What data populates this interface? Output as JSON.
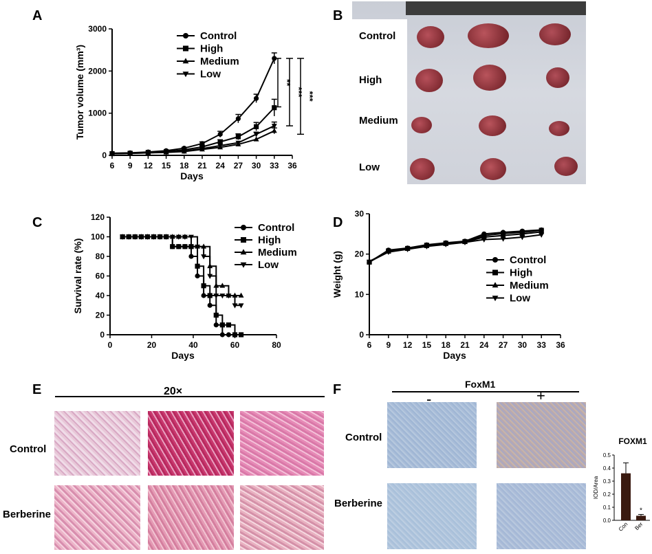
{
  "panel_letters": {
    "A": "A",
    "B": "B",
    "C": "C",
    "D": "D",
    "E": "E",
    "F": "F"
  },
  "colors": {
    "line": "#000000",
    "background": "#ffffff",
    "bar": "#3a1a10"
  },
  "chart_data": [
    {
      "panel": "A",
      "type": "line",
      "xlabel": "Days",
      "ylabel": "Tumor volume (mm³)",
      "xlim": [
        6,
        36
      ],
      "ylim": [
        0,
        3000
      ],
      "xticks": [
        6,
        9,
        12,
        15,
        18,
        21,
        24,
        27,
        30,
        33,
        36
      ],
      "yticks": [
        0,
        1000,
        2000,
        3000
      ],
      "x": [
        6,
        9,
        12,
        15,
        18,
        21,
        24,
        27,
        30,
        33
      ],
      "series": [
        {
          "name": "Control",
          "marker": "circle",
          "values": [
            50,
            60,
            80,
            110,
            170,
            280,
            500,
            870,
            1350,
            2300
          ],
          "err": [
            0,
            0,
            0,
            0,
            20,
            40,
            70,
            100,
            100,
            130
          ]
        },
        {
          "name": "High",
          "marker": "square",
          "values": [
            40,
            50,
            70,
            90,
            130,
            200,
            320,
            440,
            680,
            1130
          ],
          "err": [
            0,
            0,
            0,
            0,
            0,
            30,
            50,
            70,
            100,
            200
          ]
        },
        {
          "name": "Medium",
          "marker": "triangle-up",
          "values": [
            40,
            45,
            60,
            70,
            90,
            140,
            190,
            260,
            380,
            580
          ],
          "err": [
            0,
            0,
            0,
            0,
            0,
            0,
            0,
            0,
            0,
            70
          ]
        },
        {
          "name": "Low",
          "marker": "triangle-down",
          "values": [
            40,
            50,
            60,
            75,
            100,
            160,
            230,
            300,
            500,
            700
          ],
          "err": [
            0,
            0,
            0,
            0,
            0,
            0,
            0,
            0,
            50,
            90
          ]
        }
      ],
      "annotations": [
        "**",
        "***",
        "***"
      ],
      "legend": "top-center"
    },
    {
      "panel": "C",
      "type": "line",
      "step": true,
      "xlabel": "Days",
      "ylabel": "Survival rate (%)",
      "xlim": [
        0,
        80
      ],
      "ylim": [
        0,
        120
      ],
      "xticks": [
        0,
        20,
        40,
        60,
        80
      ],
      "yticks": [
        0,
        20,
        40,
        60,
        80,
        100,
        120
      ],
      "series": [
        {
          "name": "Control",
          "marker": "circle",
          "x": [
            6,
            9,
            12,
            15,
            18,
            21,
            24,
            27,
            30,
            33,
            36,
            39,
            42,
            45,
            48,
            51,
            54,
            57,
            60,
            63
          ],
          "values": [
            100,
            100,
            100,
            100,
            100,
            100,
            100,
            100,
            90,
            90,
            90,
            80,
            60,
            40,
            30,
            10,
            0,
            0,
            0,
            0
          ]
        },
        {
          "name": "High",
          "marker": "square",
          "x": [
            6,
            9,
            12,
            15,
            18,
            21,
            24,
            27,
            30,
            33,
            36,
            39,
            42,
            45,
            48,
            51,
            54,
            57,
            60,
            63
          ],
          "values": [
            100,
            100,
            100,
            100,
            100,
            100,
            100,
            100,
            90,
            90,
            90,
            90,
            70,
            50,
            40,
            20,
            10,
            10,
            0,
            0
          ]
        },
        {
          "name": "Medium",
          "marker": "triangle-up",
          "x": [
            6,
            9,
            12,
            15,
            18,
            21,
            24,
            27,
            30,
            33,
            36,
            39,
            42,
            45,
            48,
            51,
            54,
            57,
            60,
            63
          ],
          "values": [
            100,
            100,
            100,
            100,
            100,
            100,
            100,
            100,
            100,
            100,
            100,
            90,
            90,
            90,
            70,
            50,
            50,
            40,
            40,
            40
          ]
        },
        {
          "name": "Low",
          "marker": "triangle-down",
          "x": [
            6,
            9,
            12,
            15,
            18,
            21,
            24,
            27,
            30,
            33,
            36,
            39,
            42,
            45,
            48,
            51,
            54,
            57,
            60,
            63
          ],
          "values": [
            100,
            100,
            100,
            100,
            100,
            100,
            100,
            100,
            100,
            100,
            100,
            100,
            90,
            80,
            60,
            40,
            40,
            40,
            30,
            30
          ]
        }
      ],
      "legend": "top-right"
    },
    {
      "panel": "D",
      "type": "line",
      "xlabel": "Days",
      "ylabel": "Weight (g)",
      "xlim": [
        6,
        36
      ],
      "ylim": [
        0,
        30
      ],
      "xticks": [
        6,
        9,
        12,
        15,
        18,
        21,
        24,
        27,
        30,
        33,
        36
      ],
      "yticks": [
        0,
        10,
        20,
        30
      ],
      "x": [
        6,
        9,
        12,
        15,
        18,
        21,
        24,
        27,
        30,
        33
      ],
      "series": [
        {
          "name": "Control",
          "marker": "circle",
          "values": [
            18,
            21,
            21.5,
            22.3,
            22.8,
            23.2,
            25,
            25.4,
            25.7,
            26
          ]
        },
        {
          "name": "High",
          "marker": "square",
          "values": [
            18,
            20.8,
            21.4,
            22.2,
            22.7,
            23.1,
            24.6,
            25.1,
            25.4,
            25.9
          ]
        },
        {
          "name": "Medium",
          "marker": "triangle-up",
          "values": [
            18.2,
            20.6,
            21.3,
            22,
            22.5,
            23,
            24.2,
            24.6,
            25,
            25.5
          ]
        },
        {
          "name": "Low",
          "marker": "triangle-down",
          "values": [
            18.1,
            20.5,
            21.2,
            21.9,
            22.4,
            22.9,
            23.6,
            23.8,
            24.2,
            24.8
          ]
        }
      ],
      "legend": "right"
    },
    {
      "panel": "F",
      "type": "bar",
      "title": "FOXM1",
      "ylabel": "IOD/Area",
      "categories": [
        "Con",
        "Ber"
      ],
      "values": [
        0.36,
        0.035
      ],
      "err": [
        0.08,
        0.01
      ],
      "ylim": [
        0,
        0.5
      ],
      "yticks": [
        0.0,
        0.1,
        0.2,
        0.3,
        0.4,
        0.5
      ],
      "annotations": [
        "*"
      ]
    }
  ],
  "panel_b": {
    "row_labels": [
      "Control",
      "High",
      "Medium",
      "Low"
    ]
  },
  "panel_e": {
    "magnification": "20×",
    "row_labels": [
      "Control",
      "Berberine"
    ]
  },
  "panel_f": {
    "header": "FoxM1",
    "minus": "-",
    "plus": "+",
    "row_labels": [
      "Control",
      "Berberine"
    ]
  }
}
